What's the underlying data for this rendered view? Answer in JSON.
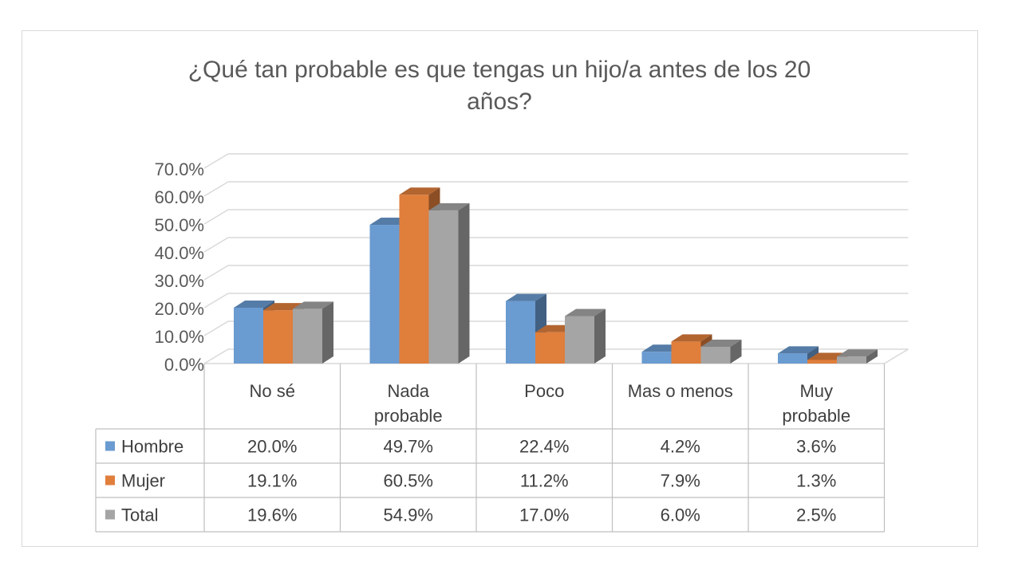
{
  "chart_data": {
    "type": "bar",
    "title_line1": "¿Qué tan probable es que tengas un hijo/a antes de los 20",
    "title_line2": "años?",
    "categories": [
      "No sé",
      "Nada probable",
      "Poco",
      "Mas o menos",
      "Muy probable"
    ],
    "series": [
      {
        "name": "Hombre",
        "color": "#6a9bd1",
        "values": [
          20.0,
          49.7,
          22.4,
          4.2,
          3.6
        ],
        "labels": [
          "20.0%",
          "49.7%",
          "22.4%",
          "4.2%",
          "3.6%"
        ]
      },
      {
        "name": "Mujer",
        "color": "#e07e3c",
        "values": [
          19.1,
          60.5,
          11.2,
          7.9,
          1.3
        ],
        "labels": [
          "19.1%",
          "60.5%",
          "11.2%",
          "7.9%",
          "1.3%"
        ]
      },
      {
        "name": "Total",
        "color": "#a5a5a5",
        "values": [
          19.6,
          54.9,
          17.0,
          6.0,
          2.5
        ],
        "labels": [
          "19.6%",
          "54.9%",
          "17.0%",
          "6.0%",
          "2.5%"
        ]
      }
    ],
    "ylim": [
      0,
      70
    ],
    "yticks": [
      "0.0%",
      "10.0%",
      "20.0%",
      "30.0%",
      "40.0%",
      "50.0%",
      "60.0%",
      "70.0%"
    ],
    "grid": true,
    "bars_3d": true,
    "legend": "data-table"
  }
}
